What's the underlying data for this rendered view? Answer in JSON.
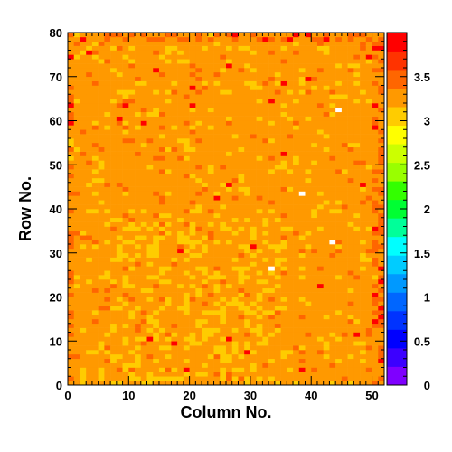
{
  "chart_data": {
    "type": "heatmap",
    "title": "",
    "xlabel": "Column No.",
    "ylabel": "Row No.",
    "x_range": [
      0,
      52
    ],
    "y_range": [
      0,
      80
    ],
    "x_ticks": [
      0,
      10,
      20,
      30,
      40,
      50
    ],
    "y_ticks": [
      0,
      10,
      20,
      30,
      40,
      50,
      60,
      70,
      80
    ],
    "z_range": [
      0,
      4
    ],
    "z_ticks": [
      0,
      0.5,
      1,
      1.5,
      2,
      2.5,
      3,
      3.5
    ],
    "z_tick_labels": [
      "0",
      "0.5",
      "1",
      "1.5",
      "2",
      "2.5",
      "3",
      "3.5"
    ],
    "palette": [
      "#7f00ff",
      "#3c00ff",
      "#0000ff",
      "#0033ff",
      "#0066ff",
      "#0099ff",
      "#00ccff",
      "#00ffff",
      "#00ff99",
      "#00ff33",
      "#33ff00",
      "#99ff00",
      "#ccff00",
      "#ffff00",
      "#ffcc00",
      "#ff9900",
      "#ff6600",
      "#ff3300",
      "#ff0000"
    ],
    "dominant_value": 3.35,
    "value_levels": {
      "yellow": 3.1,
      "orange": 3.35,
      "dark_orange": 3.55,
      "red": 3.8
    },
    "zero_cells": [
      [
        33,
        26
      ],
      [
        38,
        43
      ],
      [
        43,
        32
      ],
      [
        44,
        62
      ]
    ],
    "description_note": ""
  }
}
